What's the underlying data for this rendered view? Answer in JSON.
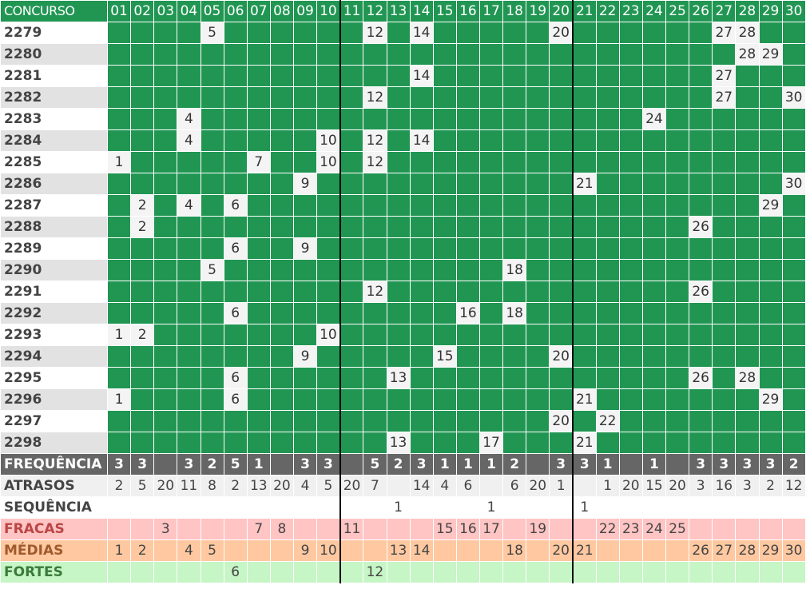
{
  "header": {
    "label": "CONCURSO",
    "numbers": [
      "01",
      "02",
      "03",
      "04",
      "05",
      "06",
      "07",
      "08",
      "09",
      "10",
      "11",
      "12",
      "13",
      "14",
      "15",
      "16",
      "17",
      "18",
      "19",
      "20",
      "21",
      "22",
      "23",
      "24",
      "25",
      "26",
      "27",
      "28",
      "29",
      "30"
    ]
  },
  "draws": [
    {
      "concurso": "2279",
      "numbers": [
        5,
        12,
        14,
        20,
        27,
        28
      ]
    },
    {
      "concurso": "2280",
      "numbers": [
        28,
        29
      ]
    },
    {
      "concurso": "2281",
      "numbers": [
        14,
        27
      ]
    },
    {
      "concurso": "2282",
      "numbers": [
        12,
        27,
        30
      ]
    },
    {
      "concurso": "2283",
      "numbers": [
        4,
        24
      ]
    },
    {
      "concurso": "2284",
      "numbers": [
        4,
        10,
        12,
        14
      ]
    },
    {
      "concurso": "2285",
      "numbers": [
        1,
        7,
        10,
        12
      ]
    },
    {
      "concurso": "2286",
      "numbers": [
        9,
        21,
        30
      ]
    },
    {
      "concurso": "2287",
      "numbers": [
        2,
        4,
        6,
        29
      ]
    },
    {
      "concurso": "2288",
      "numbers": [
        2,
        26
      ]
    },
    {
      "concurso": "2289",
      "numbers": [
        6,
        9
      ]
    },
    {
      "concurso": "2290",
      "numbers": [
        5,
        18
      ]
    },
    {
      "concurso": "2291",
      "numbers": [
        12,
        26
      ]
    },
    {
      "concurso": "2292",
      "numbers": [
        6,
        16,
        18
      ]
    },
    {
      "concurso": "2293",
      "numbers": [
        1,
        2,
        10
      ]
    },
    {
      "concurso": "2294",
      "numbers": [
        9,
        15,
        20
      ]
    },
    {
      "concurso": "2295",
      "numbers": [
        6,
        13,
        26,
        28
      ]
    },
    {
      "concurso": "2296",
      "numbers": [
        1,
        6,
        21,
        29
      ]
    },
    {
      "concurso": "2297",
      "numbers": [
        20,
        22
      ]
    },
    {
      "concurso": "2298",
      "numbers": [
        13,
        17,
        21
      ]
    }
  ],
  "stats": [
    {
      "key": "freq",
      "label": "FREQUÊNCIA",
      "values": [
        "3",
        "3",
        "",
        "3",
        "2",
        "5",
        "1",
        "",
        "3",
        "3",
        "",
        "5",
        "2",
        "3",
        "1",
        "1",
        "1",
        "2",
        "",
        "3",
        "3",
        "1",
        "",
        "1",
        "",
        "3",
        "3",
        "3",
        "3",
        "2"
      ]
    },
    {
      "key": "atr",
      "label": "ATRASOS",
      "values": [
        "2",
        "5",
        "20",
        "11",
        "8",
        "2",
        "13",
        "20",
        "4",
        "5",
        "20",
        "7",
        "",
        "14",
        "4",
        "6",
        "",
        "6",
        "20",
        "1",
        "",
        "1",
        "20",
        "15",
        "20",
        "3",
        "16",
        "3",
        "2",
        "12"
      ]
    },
    {
      "key": "seq",
      "label": "SEQUÊNCIA",
      "values": [
        "",
        "",
        "",
        "",
        "",
        "",
        "",
        "",
        "",
        "",
        "",
        "",
        "1",
        "",
        "",
        "",
        "1",
        "",
        "",
        "",
        "1",
        "",
        "",
        "",
        "",
        "",
        "",
        "",
        "",
        ""
      ]
    },
    {
      "key": "fra",
      "label": "FRACAS",
      "values": [
        "",
        "",
        "3",
        "",
        "",
        "",
        "7",
        "8",
        "",
        "",
        "11",
        "",
        "",
        "",
        "15",
        "16",
        "17",
        "",
        "19",
        "",
        "",
        "22",
        "23",
        "24",
        "25",
        "",
        "",
        "",
        "",
        ""
      ]
    },
    {
      "key": "med",
      "label": "MÉDIAS",
      "values": [
        "1",
        "2",
        "",
        "4",
        "5",
        "",
        "",
        "",
        "9",
        "10",
        "",
        "",
        "13",
        "14",
        "",
        "",
        "",
        "18",
        "",
        "20",
        "21",
        "",
        "",
        "",
        "",
        "26",
        "27",
        "28",
        "29",
        "30"
      ]
    },
    {
      "key": "for",
      "label": "FORTES",
      "values": [
        "",
        "",
        "",
        "",
        "",
        "6",
        "",
        "",
        "",
        "",
        "",
        "12",
        "",
        "",
        "",
        "",
        "",
        "",
        "",
        "",
        "",
        "",
        "",
        "",
        "",
        "",
        "",
        "",
        "",
        ""
      ]
    }
  ],
  "colors": {
    "grid_green": "#219653",
    "hit_cell": "#f4f4f4",
    "freq_bg": "#666666",
    "fracas_bg": "#ffc4c4",
    "medias_bg": "#ffc8a0",
    "fortes_bg": "#c6f5c6"
  }
}
